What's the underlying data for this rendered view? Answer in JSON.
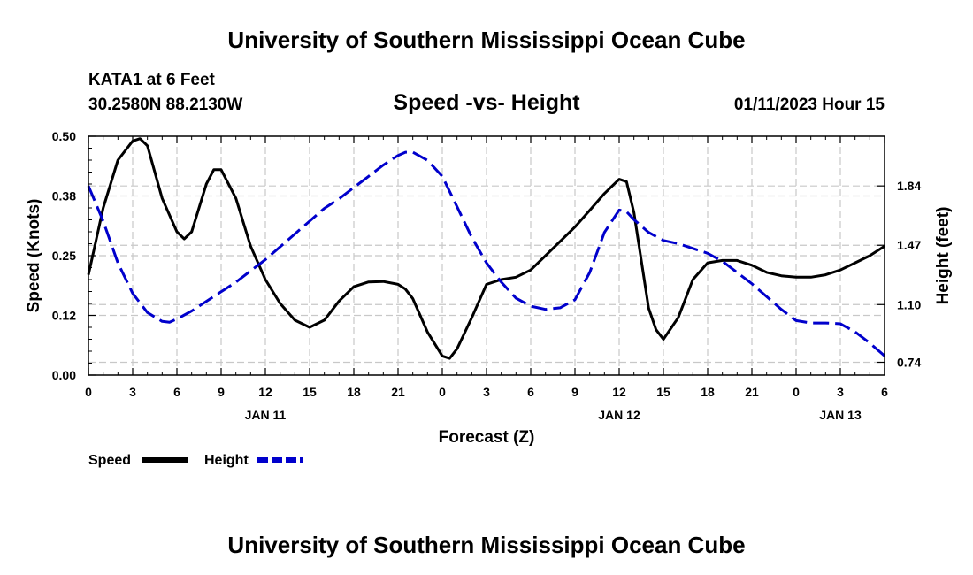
{
  "header": {
    "title": "University of Southern Mississippi Ocean Cube",
    "station": "KATA1 at 6 Feet",
    "coords": "30.2580N  88.2130W",
    "datetime": "01/11/2023 Hour 15"
  },
  "footer": {
    "title": "University of Southern Mississippi Ocean Cube"
  },
  "colors": {
    "speed": "#000000",
    "height": "#0000cc",
    "grid": "#c8c8c8"
  },
  "chart_data": {
    "type": "line",
    "title": "Speed -vs- Height",
    "xlabel": "Forecast (Z)",
    "ylabel": "Speed (Knots)",
    "y2label": "Height (feet)",
    "xlim": [
      0,
      54
    ],
    "x_tick_positions": [
      0,
      3,
      6,
      9,
      12,
      15,
      18,
      21,
      24,
      27,
      30,
      33,
      36,
      39,
      42,
      45,
      48,
      51,
      54
    ],
    "x_tick_labels": [
      "0",
      "3",
      "6",
      "9",
      "12",
      "15",
      "18",
      "21",
      "0",
      "3",
      "6",
      "9",
      "12",
      "15",
      "18",
      "21",
      "0",
      "3",
      "6"
    ],
    "date_labels": [
      {
        "x": 12,
        "label": "JAN 11"
      },
      {
        "x": 36,
        "label": "JAN 12"
      },
      {
        "x": 51,
        "label": "JAN 13"
      }
    ],
    "ylim": [
      0,
      0.5
    ],
    "y_ticks": [
      0,
      0.125,
      0.25,
      0.375,
      0.5
    ],
    "y_tick_labels": [
      "0.00",
      "0.12",
      "0.25",
      "0.38",
      "0.50"
    ],
    "y2lim": [
      0.66,
      2.15
    ],
    "y2_ticks": [
      0.74,
      1.1,
      1.47,
      1.84
    ],
    "y2_tick_labels": [
      "0.74",
      "1.10",
      "1.47",
      "1.84"
    ],
    "grid": true,
    "legend": {
      "position": "bottom-left",
      "speed_label": "Speed",
      "height_label": "Height"
    },
    "series": [
      {
        "name": "Speed",
        "axis": "left",
        "style": "solid",
        "x": [
          0,
          1,
          2,
          3,
          3.5,
          4,
          5,
          6,
          6.5,
          7,
          8,
          8.5,
          9,
          10,
          11,
          12,
          13,
          14,
          15,
          16,
          17,
          18,
          19,
          20,
          21,
          21.5,
          22,
          23,
          24,
          24.5,
          25,
          26,
          27,
          28,
          29,
          30,
          31,
          32,
          33,
          34,
          35,
          36,
          36.5,
          37,
          38,
          38.5,
          39,
          40,
          41,
          42,
          43,
          44,
          45,
          46,
          47,
          48,
          49,
          50,
          51,
          52,
          53,
          54
        ],
        "values": [
          0.21,
          0.35,
          0.45,
          0.49,
          0.495,
          0.48,
          0.37,
          0.3,
          0.285,
          0.3,
          0.4,
          0.43,
          0.43,
          0.37,
          0.27,
          0.2,
          0.15,
          0.115,
          0.1,
          0.115,
          0.155,
          0.185,
          0.195,
          0.196,
          0.19,
          0.18,
          0.16,
          0.09,
          0.04,
          0.035,
          0.055,
          0.12,
          0.19,
          0.2,
          0.205,
          0.22,
          0.25,
          0.28,
          0.31,
          0.345,
          0.38,
          0.41,
          0.405,
          0.34,
          0.14,
          0.095,
          0.075,
          0.12,
          0.2,
          0.235,
          0.24,
          0.24,
          0.23,
          0.215,
          0.208,
          0.205,
          0.205,
          0.21,
          0.22,
          0.235,
          0.25,
          0.27
        ]
      },
      {
        "name": "Height",
        "axis": "right",
        "style": "dashed",
        "x": [
          0,
          1,
          2,
          3,
          4,
          5,
          5.5,
          6,
          7,
          8,
          9,
          10,
          11,
          12,
          13,
          14,
          15,
          16,
          17,
          18,
          19,
          20,
          21,
          21.5,
          22,
          23,
          24,
          25,
          26,
          27,
          28,
          29,
          30,
          31,
          32,
          33,
          34,
          35,
          36,
          36.5,
          37,
          38,
          39,
          40,
          41,
          42,
          43,
          44,
          45,
          46,
          47,
          48,
          49,
          50,
          51,
          52,
          53,
          54
        ],
        "values": [
          1.84,
          1.62,
          1.36,
          1.17,
          1.05,
          0.995,
          0.99,
          1.01,
          1.06,
          1.12,
          1.18,
          1.24,
          1.31,
          1.38,
          1.46,
          1.54,
          1.62,
          1.7,
          1.76,
          1.83,
          1.9,
          1.97,
          2.03,
          2.05,
          2.05,
          2.0,
          1.9,
          1.71,
          1.52,
          1.36,
          1.24,
          1.14,
          1.09,
          1.07,
          1.08,
          1.13,
          1.3,
          1.55,
          1.69,
          1.68,
          1.63,
          1.55,
          1.5,
          1.48,
          1.45,
          1.42,
          1.37,
          1.3,
          1.23,
          1.15,
          1.07,
          1.0,
          0.985,
          0.985,
          0.98,
          0.93,
          0.86,
          0.78
        ]
      }
    ]
  }
}
